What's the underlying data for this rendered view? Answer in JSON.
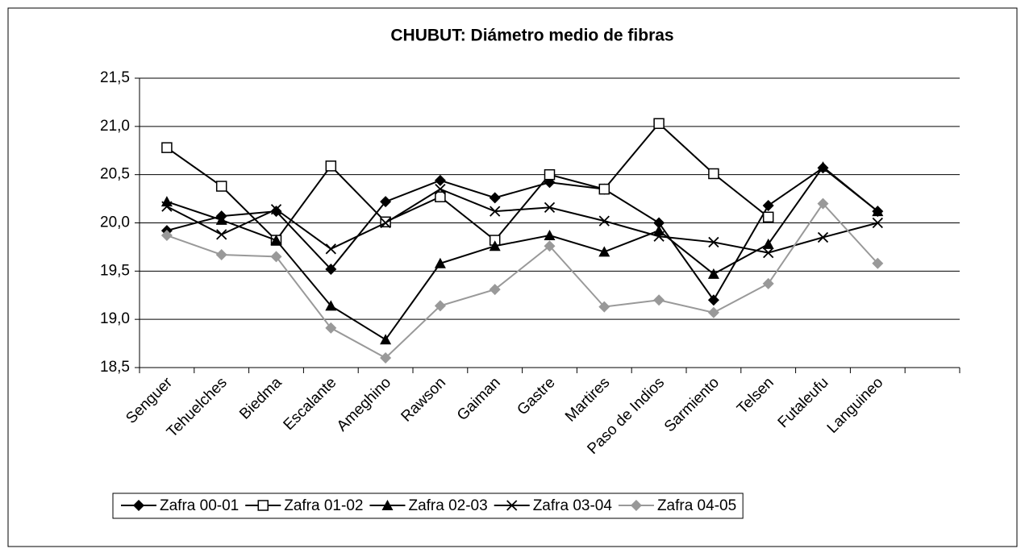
{
  "chart_data": {
    "type": "line",
    "title": "CHUBUT: Diámetro medio de fibras",
    "categories": [
      "Senguer",
      "Tehuelches",
      "Biedma",
      "Escalante",
      "Ameghino",
      "Rawson",
      "Gaiman",
      "Gastre",
      "Martires",
      "Paso de Indios",
      "Sarmiento",
      "Telsen",
      "Futaleufu",
      "Languineo",
      null
    ],
    "series": [
      {
        "name": "Zafra 00-01",
        "color": "#000000",
        "marker": "diamond",
        "values": [
          19.92,
          20.07,
          20.12,
          19.52,
          20.22,
          20.44,
          20.26,
          20.42,
          20.35,
          20.0,
          19.2,
          20.18,
          20.57,
          20.12,
          null
        ]
      },
      {
        "name": "Zafra 01-02",
        "color": "#000000",
        "marker": "square",
        "values": [
          20.78,
          20.38,
          19.82,
          20.59,
          20.01,
          20.27,
          19.82,
          20.5,
          20.35,
          21.03,
          20.51,
          20.06,
          null,
          null,
          null
        ]
      },
      {
        "name": "Zafra 02-03",
        "color": "#000000",
        "marker": "triangle",
        "values": [
          20.22,
          20.03,
          19.82,
          19.14,
          18.79,
          19.58,
          19.76,
          19.87,
          19.7,
          19.92,
          19.47,
          19.78,
          20.58,
          20.12,
          null
        ]
      },
      {
        "name": "Zafra 03-04",
        "color": "#000000",
        "marker": "x",
        "values": [
          20.17,
          19.88,
          20.14,
          19.73,
          20.0,
          20.35,
          20.12,
          20.16,
          20.02,
          19.86,
          19.8,
          19.69,
          19.85,
          20.0,
          null
        ]
      },
      {
        "name": "Zafra 04-05",
        "color": "#999999",
        "marker": "diamond",
        "values": [
          19.87,
          19.67,
          19.65,
          18.91,
          18.6,
          19.14,
          19.31,
          19.76,
          19.13,
          19.2,
          19.07,
          19.37,
          20.2,
          19.58,
          null
        ]
      }
    ],
    "ylim": [
      18.5,
      21.5
    ],
    "yticks": [
      {
        "value": 18.5,
        "label": "18,5"
      },
      {
        "value": 19,
        "label": "19,0"
      },
      {
        "value": 19.5,
        "label": "19,5"
      },
      {
        "value": 20,
        "label": "20,0"
      },
      {
        "value": 20.5,
        "label": "20,5"
      },
      {
        "value": 21,
        "label": "21,0"
      },
      {
        "value": 21.5,
        "label": "21,5"
      }
    ],
    "grid": true,
    "legend": "bottom"
  }
}
